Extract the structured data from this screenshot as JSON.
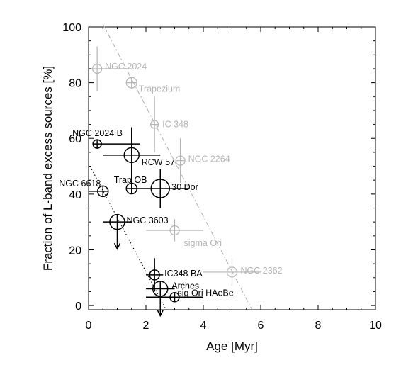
{
  "chart_data": {
    "type": "scatter",
    "xlabel": "Age [Myr]",
    "ylabel": "Fraction of L-band excess sources [%]",
    "xlim": [
      0,
      10
    ],
    "ylim": [
      -1.5,
      100
    ],
    "x_ticks": [
      0,
      2,
      4,
      6,
      8,
      10
    ],
    "y_ticks": [
      0,
      20,
      40,
      60,
      80,
      100
    ],
    "grid": false,
    "colors": {
      "black_series": "#000000",
      "gray_series": "#b4b4b4"
    },
    "series": [
      {
        "color": "gray",
        "points": [
          {
            "label": "NGC 2024",
            "x": 0.3,
            "y": 85,
            "xerr": [
              0.3,
              1.2
            ],
            "yerr": [
              8,
              8
            ]
          },
          {
            "label": "Trapezium",
            "x": 1.5,
            "y": 80,
            "xerr": [
              0,
              0
            ],
            "yerr": [
              0,
              0
            ]
          },
          {
            "label": "IC 348",
            "x": 2.3,
            "y": 65,
            "xerr": [
              0,
              0
            ],
            "yerr": [
              10,
              10
            ]
          },
          {
            "label": "NGC 2264",
            "x": 3.2,
            "y": 52,
            "xerr": [
              0,
              0
            ],
            "yerr": [
              8,
              8
            ]
          },
          {
            "label": "sigma Ori",
            "x": 3.0,
            "y": 27,
            "xerr": [
              1.0,
              1.0
            ],
            "yerr": [
              4,
              4
            ]
          },
          {
            "label": "NGC 2362",
            "x": 5.0,
            "y": 12,
            "xerr": [
              1.0,
              1.0
            ],
            "yerr": [
              5,
              5
            ]
          }
        ]
      },
      {
        "color": "black",
        "points": [
          {
            "label": "NGC 2024 B",
            "x": 0.3,
            "y": 58,
            "xerr": [
              0,
              1.5
            ],
            "yerr": [
              0,
              0
            ]
          },
          {
            "label": "RCW 57",
            "x": 1.5,
            "y": 54,
            "xerr": [
              1.0,
              1.0
            ],
            "yerr": [
              10,
              10
            ]
          },
          {
            "label": "Trap OB",
            "x": 1.5,
            "y": 42,
            "xerr": [
              0,
              0
            ],
            "yerr": [
              0,
              0
            ]
          },
          {
            "label": "30 Dor",
            "x": 2.5,
            "y": 42,
            "xerr": [
              1.0,
              1.0
            ],
            "yerr": [
              7,
              7
            ]
          },
          {
            "label": "NGC 6618",
            "x": 0.5,
            "y": 41,
            "xerr": [
              0.5,
              0
            ],
            "yerr": [
              0,
              0
            ]
          },
          {
            "label": "NGC 3603",
            "x": 1.0,
            "y": 30,
            "xerr": [
              0.5,
              0.5
            ],
            "yerr": [
              0,
              0
            ],
            "upper_limit": true
          },
          {
            "label": "IC348 BA",
            "x": 2.3,
            "y": 11,
            "xerr": [
              0.3,
              0.3
            ],
            "yerr": [
              6,
              6
            ]
          },
          {
            "label": "Arches",
            "x": 2.5,
            "y": 6,
            "xerr": [
              0.5,
              0.5
            ],
            "yerr": [
              0,
              0
            ],
            "upper_limit": true
          },
          {
            "label": "sig Ori HAeBe",
            "x": 3.0,
            "y": 3,
            "xerr": [
              1.0,
              1.0
            ],
            "yerr": [
              0,
              0
            ]
          }
        ]
      }
    ],
    "fit_lines": [
      {
        "style": "dash-dot",
        "color": "gray",
        "from": [
          0.5,
          101
        ],
        "to": [
          5.7,
          -1.5
        ]
      },
      {
        "style": "dotted",
        "color": "black",
        "from": [
          0,
          51
        ],
        "to": [
          2.7,
          -1.5
        ]
      }
    ]
  }
}
